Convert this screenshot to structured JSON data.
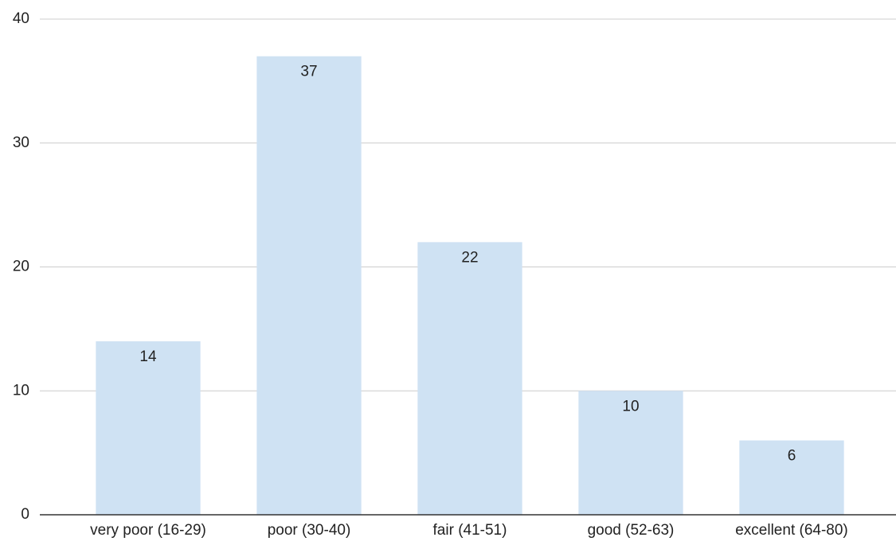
{
  "chart_data": {
    "type": "bar",
    "categories": [
      "very poor (16-29)",
      "poor (30-40)",
      "fair (41-51)",
      "good (52-63)",
      "excellent (64-80)"
    ],
    "values": [
      14,
      37,
      22,
      10,
      6
    ],
    "color": "#cfe2f3",
    "ylim": [
      0,
      40
    ],
    "yticks": [
      0,
      10,
      20,
      30,
      40
    ],
    "grid": true
  }
}
